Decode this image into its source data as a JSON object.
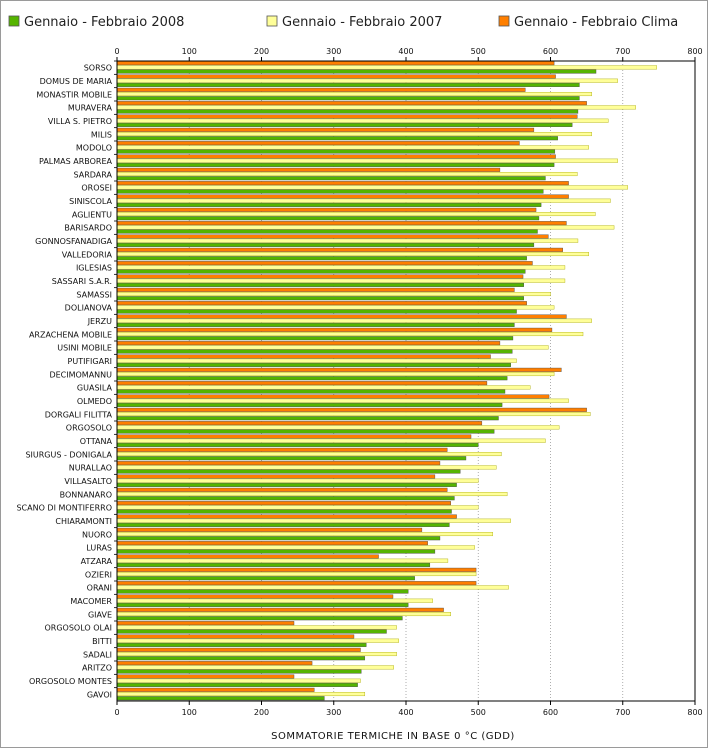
{
  "chart_data": {
    "type": "bar",
    "orientation": "horizontal",
    "xlabel": "SOMMATORIE TERMICHE IN BASE 0 °C (GDD)",
    "xlim": [
      0,
      800
    ],
    "xticks": [
      0,
      100,
      200,
      300,
      400,
      500,
      600,
      700,
      800
    ],
    "grid": true,
    "legend_position": "top",
    "categories": [
      "SORSO",
      "DOMUS DE MARIA",
      "MONASTIR MOBILE",
      "MURAVERA",
      "VILLA S. PIETRO",
      "MILIS",
      "MODOLO",
      "PALMAS ARBOREA",
      "SARDARA",
      "OROSEI",
      "SINISCOLA",
      "AGLIENTU",
      "BARISARDO",
      "GONNOSFANADIGA",
      "VALLEDORIA",
      "IGLESIAS",
      "SASSARI S.A.R.",
      "SAMASSI",
      "DOLIANOVA",
      "JERZU",
      "ARZACHENA MOBILE",
      "USINI MOBILE",
      "PUTIFIGARI",
      "DECIMOMANNU",
      "GUASILA",
      "OLMEDO",
      "DORGALI FILITTA",
      "ORGOSOLO",
      "OTTANA",
      "SIURGUS - DONIGALA",
      "NURALLAO",
      "VILLASALTO",
      "BONNANARO",
      "SCANO DI MONTIFERRO",
      "CHIARAMONTI",
      "NUORO",
      "LURAS",
      "ATZARA",
      "OZIERI",
      "ORANI",
      "MACOMER",
      "GIAVE",
      "ORGOSOLO OLAI",
      "BITTI",
      "SADALI",
      "ARITZO",
      "ORGOSOLO MONTES",
      "GAVOI"
    ],
    "series": [
      {
        "name": "Gennaio - Febbraio Clima",
        "color": "#ff7f00",
        "values": [
          605,
          607,
          565,
          650,
          637,
          577,
          557,
          607,
          530,
          625,
          625,
          580,
          622,
          597,
          617,
          575,
          562,
          550,
          567,
          622,
          602,
          530,
          517,
          615,
          512,
          598,
          650,
          505,
          490,
          457,
          447,
          440,
          457,
          462,
          470,
          422,
          430,
          362,
          497,
          497,
          382,
          452,
          245,
          328,
          337,
          270,
          245,
          273
        ]
      },
      {
        "name": "Gennaio - Febbraio 2007",
        "color": "#ffff99",
        "values": [
          747,
          693,
          657,
          718,
          680,
          657,
          653,
          693,
          637,
          707,
          683,
          662,
          688,
          638,
          653,
          620,
          620,
          600,
          605,
          657,
          645,
          597,
          553,
          605,
          572,
          625,
          655,
          612,
          593,
          532,
          525,
          500,
          540,
          500,
          545,
          520,
          495,
          458,
          497,
          542,
          437,
          462,
          387,
          390,
          387,
          383,
          337,
          343
        ]
      },
      {
        "name": "Gennaio - Febbraio 2008",
        "color": "#55b400",
        "values": [
          663,
          640,
          640,
          638,
          630,
          610,
          606,
          605,
          593,
          590,
          587,
          584,
          582,
          577,
          567,
          565,
          563,
          563,
          553,
          550,
          548,
          547,
          545,
          540,
          537,
          533,
          528,
          522,
          500,
          483,
          475,
          470,
          467,
          463,
          460,
          447,
          440,
          433,
          412,
          403,
          403,
          395,
          373,
          345,
          343,
          338,
          333,
          287
        ]
      }
    ]
  }
}
